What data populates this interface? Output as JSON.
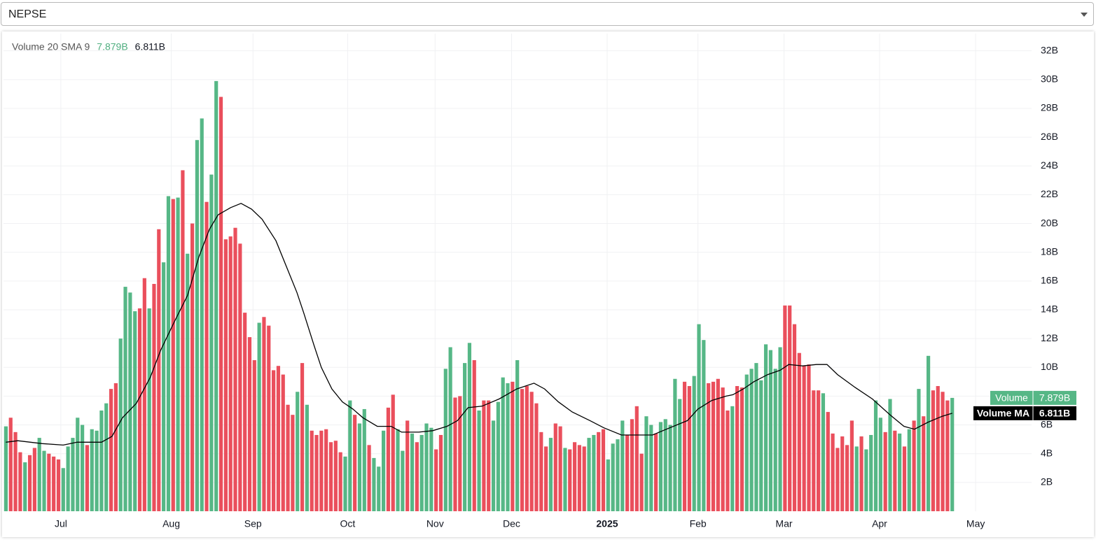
{
  "selector": {
    "value": "NEPSE"
  },
  "chart_data": {
    "type": "bar",
    "status_line": {
      "text": "Volume 20 SMA 9",
      "volume_label": "7.879B",
      "ma_label": "6.811B"
    },
    "xlim": [
      -0.5,
      214.6
    ],
    "xticks": [
      {
        "value": 11.5,
        "label": "Jul"
      },
      {
        "value": 34.6,
        "label": "Aug"
      },
      {
        "value": 51.7,
        "label": "Sep"
      },
      {
        "value": 71.5,
        "label": "Oct"
      },
      {
        "value": 89.8,
        "label": "Nov"
      },
      {
        "value": 105.8,
        "label": "Dec"
      },
      {
        "value": 125.8,
        "label": "2025"
      },
      {
        "value": 144.8,
        "label": "Feb"
      },
      {
        "value": 162.8,
        "label": "Mar"
      },
      {
        "value": 182.8,
        "label": "Apr"
      },
      {
        "value": 202.9,
        "label": "May"
      }
    ],
    "ylim": [
      0,
      33.2
    ],
    "yticks": [
      {
        "value": 2,
        "label": "2B"
      },
      {
        "value": 4,
        "label": "4B"
      },
      {
        "value": 6,
        "label": "6B"
      },
      {
        "value": 8,
        "label": "8B"
      },
      {
        "value": 10,
        "label": "10B"
      },
      {
        "value": 12,
        "label": "12B"
      },
      {
        "value": 14,
        "label": "14B"
      },
      {
        "value": 16,
        "label": "16B"
      },
      {
        "value": 18,
        "label": "18B"
      },
      {
        "value": 20,
        "label": "20B"
      },
      {
        "value": 22,
        "label": "22B"
      },
      {
        "value": 24,
        "label": "24B"
      },
      {
        "value": 26,
        "label": "26B"
      },
      {
        "value": 28,
        "label": "28B"
      },
      {
        "value": 30,
        "label": "30B"
      },
      {
        "value": 32,
        "label": "32B"
      }
    ],
    "grid": true,
    "series": [
      {
        "name": "Volume",
        "color": "#56b786",
        "x": [
          0,
          1,
          2,
          3,
          4,
          5,
          6,
          7,
          8,
          9,
          10,
          11,
          12,
          13,
          14,
          15,
          16,
          17,
          18,
          19,
          20,
          21,
          22,
          23,
          24,
          25,
          26,
          27,
          28,
          29,
          30,
          31,
          32,
          33,
          34,
          35,
          36,
          37,
          38,
          39,
          40,
          41,
          42,
          43,
          44,
          45,
          46,
          47,
          48,
          49,
          50,
          51,
          52,
          53,
          54,
          55,
          56,
          57,
          58,
          59,
          60,
          61,
          62,
          63,
          64,
          65,
          66,
          67,
          68,
          69,
          70,
          71,
          72,
          73,
          74,
          75,
          76,
          77,
          78,
          79,
          80,
          81,
          82,
          83,
          84,
          85,
          86,
          87,
          88,
          89,
          90,
          91,
          92,
          93,
          94,
          95,
          96,
          97,
          98,
          99,
          100,
          101,
          102,
          103,
          104,
          105,
          106,
          107,
          108,
          109,
          110,
          111,
          112,
          113,
          114,
          115,
          116,
          117,
          118,
          119,
          120,
          121,
          122,
          123,
          124,
          125,
          126,
          127,
          128,
          129,
          130,
          131,
          132,
          133,
          134,
          135,
          136,
          137,
          138,
          139,
          140,
          141,
          142,
          143,
          144,
          145,
          146,
          147,
          148,
          149,
          150,
          151,
          152,
          153,
          154,
          155,
          156,
          157,
          158,
          159,
          160,
          161,
          162,
          163,
          164,
          165,
          166,
          167,
          168,
          169,
          170,
          171,
          172,
          173,
          174,
          175,
          176,
          177,
          178,
          179,
          180,
          181,
          182,
          183,
          184,
          185,
          186,
          187,
          188,
          189,
          190,
          191,
          192,
          193,
          194,
          195,
          196,
          197,
          198
        ],
        "values": [
          5.9,
          6.5,
          5.5,
          4.1,
          3.4,
          3.9,
          4.4,
          5.1,
          4.2,
          4.0,
          3.8,
          3.6,
          3.0,
          4.5,
          5.1,
          6.5,
          6.0,
          4.6,
          5.7,
          5.6,
          7.0,
          7.5,
          8.5,
          8.9,
          12.0,
          15.6,
          15.2,
          13.9,
          14.1,
          16.2,
          14.1,
          15.8,
          19.6,
          17.3,
          21.9,
          21.7,
          21.8,
          23.7,
          17.9,
          20.0,
          25.8,
          27.3,
          21.5,
          23.4,
          29.9,
          28.8,
          18.9,
          19.1,
          19.7,
          18.6,
          13.8,
          12.1,
          10.5,
          13.1,
          13.5,
          12.9,
          9.8,
          10.1,
          9.5,
          7.4,
          6.7,
          8.3,
          10.3,
          7.4,
          5.6,
          5.3,
          5.6,
          5.7,
          4.8,
          4.9,
          4.1,
          3.8,
          7.7,
          6.7,
          6.1,
          7.1,
          4.6,
          3.7,
          3.1,
          5.6,
          7.2,
          8.1,
          5.7,
          4.2,
          6.3,
          5.4,
          4.8,
          5.3,
          6.1,
          5.8,
          4.3,
          5.3,
          9.9,
          11.4,
          7.9,
          8.0,
          10.3,
          11.7,
          10.5,
          7.0,
          7.7,
          7.7,
          6.3,
          7.6,
          9.3,
          8.9,
          9.0,
          10.5,
          8.5,
          8.7,
          8.3,
          7.5,
          5.5,
          4.5,
          5.1,
          6.1,
          5.9,
          4.4,
          4.3,
          4.8,
          4.6,
          4.5,
          5.1,
          5.3,
          5.5,
          5.7,
          3.6,
          4.7,
          5.0,
          6.3,
          5.3,
          6.4,
          7.3,
          4.0,
          6.6,
          6.0,
          5.4,
          6.2,
          6.4,
          6.0,
          9.2,
          7.8,
          9.0,
          8.7,
          9.4,
          13.0,
          11.9,
          8.9,
          9.0,
          9.2,
          8.6,
          7.0,
          7.3,
          8.7,
          8.6,
          9.5,
          9.9,
          10.3,
          9.1,
          11.6,
          11.2,
          9.9,
          11.4,
          14.3,
          14.3,
          13.0,
          11.0,
          10.1,
          10.2,
          8.4,
          8.4,
          8.2,
          6.9,
          5.4,
          4.4,
          5.2,
          4.6,
          6.3,
          4.5,
          5.2,
          4.3,
          5.3,
          7.7,
          6.5,
          5.5,
          7.8,
          5.6,
          5.4,
          4.5,
          5.7,
          6.3,
          8.5,
          6.6,
          10.8,
          8.4,
          8.7,
          8.3,
          7.7,
          7.879
        ],
        "bar_colors": [
          "#56b786",
          "#ea4f5c",
          "#ea4f5c",
          "#ea4f5c",
          "#56b786",
          "#ea4f5c",
          "#ea4f5c",
          "#56b786",
          "#56b786",
          "#ea4f5c",
          "#ea4f5c",
          "#ea4f5c",
          "#56b786",
          "#56b786",
          "#56b786",
          "#56b786",
          "#56b786",
          "#ea4f5c",
          "#56b786",
          "#56b786",
          "#56b786",
          "#56b786",
          "#ea4f5c",
          "#ea4f5c",
          "#56b786",
          "#56b786",
          "#56b786",
          "#56b786",
          "#ea4f5c",
          "#ea4f5c",
          "#56b786",
          "#ea4f5c",
          "#ea4f5c",
          "#56b786",
          "#56b786",
          "#ea4f5c",
          "#56b786",
          "#ea4f5c",
          "#56b786",
          "#ea4f5c",
          "#56b786",
          "#56b786",
          "#ea4f5c",
          "#56b786",
          "#56b786",
          "#ea4f5c",
          "#ea4f5c",
          "#ea4f5c",
          "#ea4f5c",
          "#ea4f5c",
          "#ea4f5c",
          "#ea4f5c",
          "#ea4f5c",
          "#56b786",
          "#ea4f5c",
          "#ea4f5c",
          "#ea4f5c",
          "#ea4f5c",
          "#ea4f5c",
          "#ea4f5c",
          "#ea4f5c",
          "#56b786",
          "#ea4f5c",
          "#56b786",
          "#ea4f5c",
          "#ea4f5c",
          "#ea4f5c",
          "#ea4f5c",
          "#ea4f5c",
          "#ea4f5c",
          "#ea4f5c",
          "#56b786",
          "#56b786",
          "#ea4f5c",
          "#56b786",
          "#56b786",
          "#ea4f5c",
          "#56b786",
          "#56b786",
          "#56b786",
          "#ea4f5c",
          "#ea4f5c",
          "#56b786",
          "#56b786",
          "#ea4f5c",
          "#56b786",
          "#ea4f5c",
          "#56b786",
          "#56b786",
          "#56b786",
          "#ea4f5c",
          "#ea4f5c",
          "#56b786",
          "#56b786",
          "#ea4f5c",
          "#ea4f5c",
          "#56b786",
          "#56b786",
          "#ea4f5c",
          "#56b786",
          "#ea4f5c",
          "#ea4f5c",
          "#56b786",
          "#56b786",
          "#56b786",
          "#56b786",
          "#ea4f5c",
          "#56b786",
          "#ea4f5c",
          "#ea4f5c",
          "#ea4f5c",
          "#ea4f5c",
          "#ea4f5c",
          "#ea4f5c",
          "#56b786",
          "#ea4f5c",
          "#ea4f5c",
          "#56b786",
          "#ea4f5c",
          "#ea4f5c",
          "#ea4f5c",
          "#ea4f5c",
          "#56b786",
          "#56b786",
          "#ea4f5c",
          "#ea4f5c",
          "#56b786",
          "#56b786",
          "#56b786",
          "#56b786",
          "#ea4f5c",
          "#ea4f5c",
          "#ea4f5c",
          "#ea4f5c",
          "#56b786",
          "#56b786",
          "#ea4f5c",
          "#56b786",
          "#56b786",
          "#56b786",
          "#56b786",
          "#56b786",
          "#ea4f5c",
          "#ea4f5c",
          "#56b786",
          "#56b786",
          "#56b786",
          "#ea4f5c",
          "#ea4f5c",
          "#ea4f5c",
          "#ea4f5c",
          "#ea4f5c",
          "#56b786",
          "#ea4f5c",
          "#ea4f5c",
          "#56b786",
          "#56b786",
          "#56b786",
          "#56b786",
          "#56b786",
          "#56b786",
          "#56b786",
          "#56b786",
          "#ea4f5c",
          "#ea4f5c",
          "#ea4f5c",
          "#ea4f5c",
          "#ea4f5c",
          "#ea4f5c",
          "#ea4f5c",
          "#ea4f5c",
          "#56b786",
          "#ea4f5c",
          "#ea4f5c",
          "#ea4f5c",
          "#ea4f5c",
          "#ea4f5c",
          "#ea4f5c",
          "#56b786",
          "#ea4f5c",
          "#56b786",
          "#56b786",
          "#56b786",
          "#56b786",
          "#ea4f5c",
          "#56b786",
          "#ea4f5c",
          "#56b786",
          "#ea4f5c",
          "#56b786",
          "#ea4f5c",
          "#56b786",
          "#ea4f5c",
          "#56b786",
          "#ea4f5c",
          "#ea4f5c",
          "#ea4f5c",
          "#ea4f5c",
          "#56b786"
        ]
      },
      {
        "name": "Volume MA",
        "color": "#000000",
        "type": "line",
        "x": [
          0,
          2.5,
          7.6,
          12,
          14.9,
          20,
          22.2,
          24.4,
          27.3,
          30.2,
          32.4,
          35.3,
          38,
          40.4,
          42.6,
          44.4,
          47,
          49.2,
          51.4,
          53.6,
          56.5,
          58.7,
          60.9,
          62.3,
          64.5,
          66,
          68.2,
          70.4,
          72.6,
          74.7,
          77.7,
          80.6,
          82.8,
          86.4,
          89.3,
          92.3,
          94.5,
          96.7,
          99.6,
          103.2,
          106.9,
          110.5,
          112.7,
          115.6,
          118.5,
          122.2,
          125.1,
          128.8,
          131.7,
          135.3,
          138.2,
          142.6,
          144.8,
          147.7,
          150.7,
          152.1,
          154.3,
          156.5,
          159.4,
          162,
          163.8,
          166.7,
          169.6,
          171.8,
          174,
          177.7,
          181.3,
          185,
          187.9,
          190.1,
          193,
          195.9,
          198
        ],
        "values": [
          4.8,
          4.9,
          4.7,
          4.6,
          4.8,
          4.8,
          5.2,
          6.5,
          7.5,
          9.3,
          11.2,
          13.2,
          15,
          17.7,
          19.6,
          20.6,
          21.1,
          21.4,
          21.0,
          20.3,
          18.8,
          17.0,
          15.2,
          13.8,
          11.5,
          10.0,
          8.5,
          7.6,
          7.1,
          6.5,
          5.9,
          5.9,
          5.5,
          5.5,
          5.6,
          5.9,
          6.3,
          7.2,
          7.3,
          7.8,
          8.5,
          8.9,
          8.5,
          7.6,
          6.9,
          6.3,
          5.8,
          5.3,
          5.3,
          5.3,
          5.7,
          6.3,
          7.1,
          7.7,
          8.0,
          8.1,
          8.5,
          9.0,
          9.5,
          9.8,
          10.2,
          10.1,
          10.2,
          10.2,
          9.5,
          8.6,
          7.8,
          6.7,
          5.9,
          5.7,
          6.2,
          6.6,
          6.811
        ]
      }
    ]
  }
}
